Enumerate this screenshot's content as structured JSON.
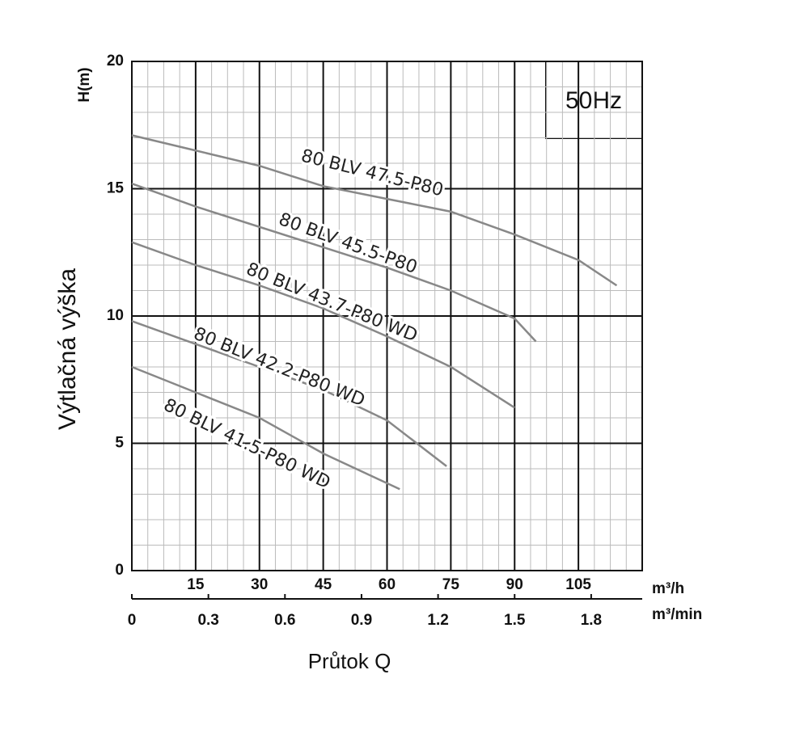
{
  "chart_data": {
    "type": "line",
    "ylabel_short": "H(m)",
    "ylabel": "Výtlačná výška",
    "xlabel": "Průtok Q",
    "xunit": "m³/h",
    "x2unit": "m³/min",
    "annotation": "50Hz",
    "xlim": [
      0,
      120
    ],
    "xticks": [
      15,
      30,
      45,
      60,
      75,
      90,
      105
    ],
    "x2lim": [
      0,
      2
    ],
    "x2ticks": [
      0,
      0.3,
      0.6,
      0.9,
      1.2,
      1.5,
      1.8
    ],
    "ylim": [
      0,
      20
    ],
    "yticks": [
      0,
      5,
      10,
      15,
      20
    ],
    "grid": true,
    "series": [
      {
        "name": "80 BLV 47.5-P80",
        "color": "#888888",
        "x": [
          0,
          15,
          30,
          45,
          60,
          75,
          90,
          105,
          114
        ],
        "values": [
          17.1,
          16.5,
          15.9,
          15.1,
          14.6,
          14.1,
          13.2,
          12.2,
          11.2
        ]
      },
      {
        "name": "80 BLV 45.5-P80",
        "color": "#888888",
        "x": [
          0,
          15,
          30,
          45,
          60,
          75,
          90,
          95
        ],
        "values": [
          15.2,
          14.3,
          13.5,
          12.7,
          11.9,
          11.0,
          9.9,
          9.0
        ]
      },
      {
        "name": "80 BLV 43.7-P80 WD",
        "color": "#888888",
        "x": [
          0,
          15,
          30,
          45,
          60,
          75,
          90
        ],
        "values": [
          12.9,
          12.0,
          11.2,
          10.3,
          9.2,
          8.0,
          6.4
        ]
      },
      {
        "name": "80 BLV 42.2-P80 WD",
        "color": "#888888",
        "x": [
          0,
          15,
          30,
          45,
          60,
          74
        ],
        "values": [
          9.8,
          8.9,
          8.0,
          7.1,
          5.9,
          4.1
        ]
      },
      {
        "name": "80 BLV 41.5-P80 WD",
        "color": "#888888",
        "x": [
          0,
          15,
          30,
          45,
          63
        ],
        "values": [
          8.0,
          7.0,
          6.0,
          4.6,
          3.2
        ]
      }
    ]
  }
}
